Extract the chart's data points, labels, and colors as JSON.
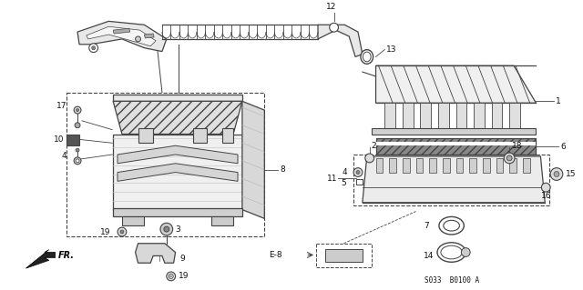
{
  "bg_color": "#ffffff",
  "fig_width": 6.4,
  "fig_height": 3.19,
  "diagram_code": "S033  B0100 A",
  "lc": "#444444",
  "tc": "#111111"
}
